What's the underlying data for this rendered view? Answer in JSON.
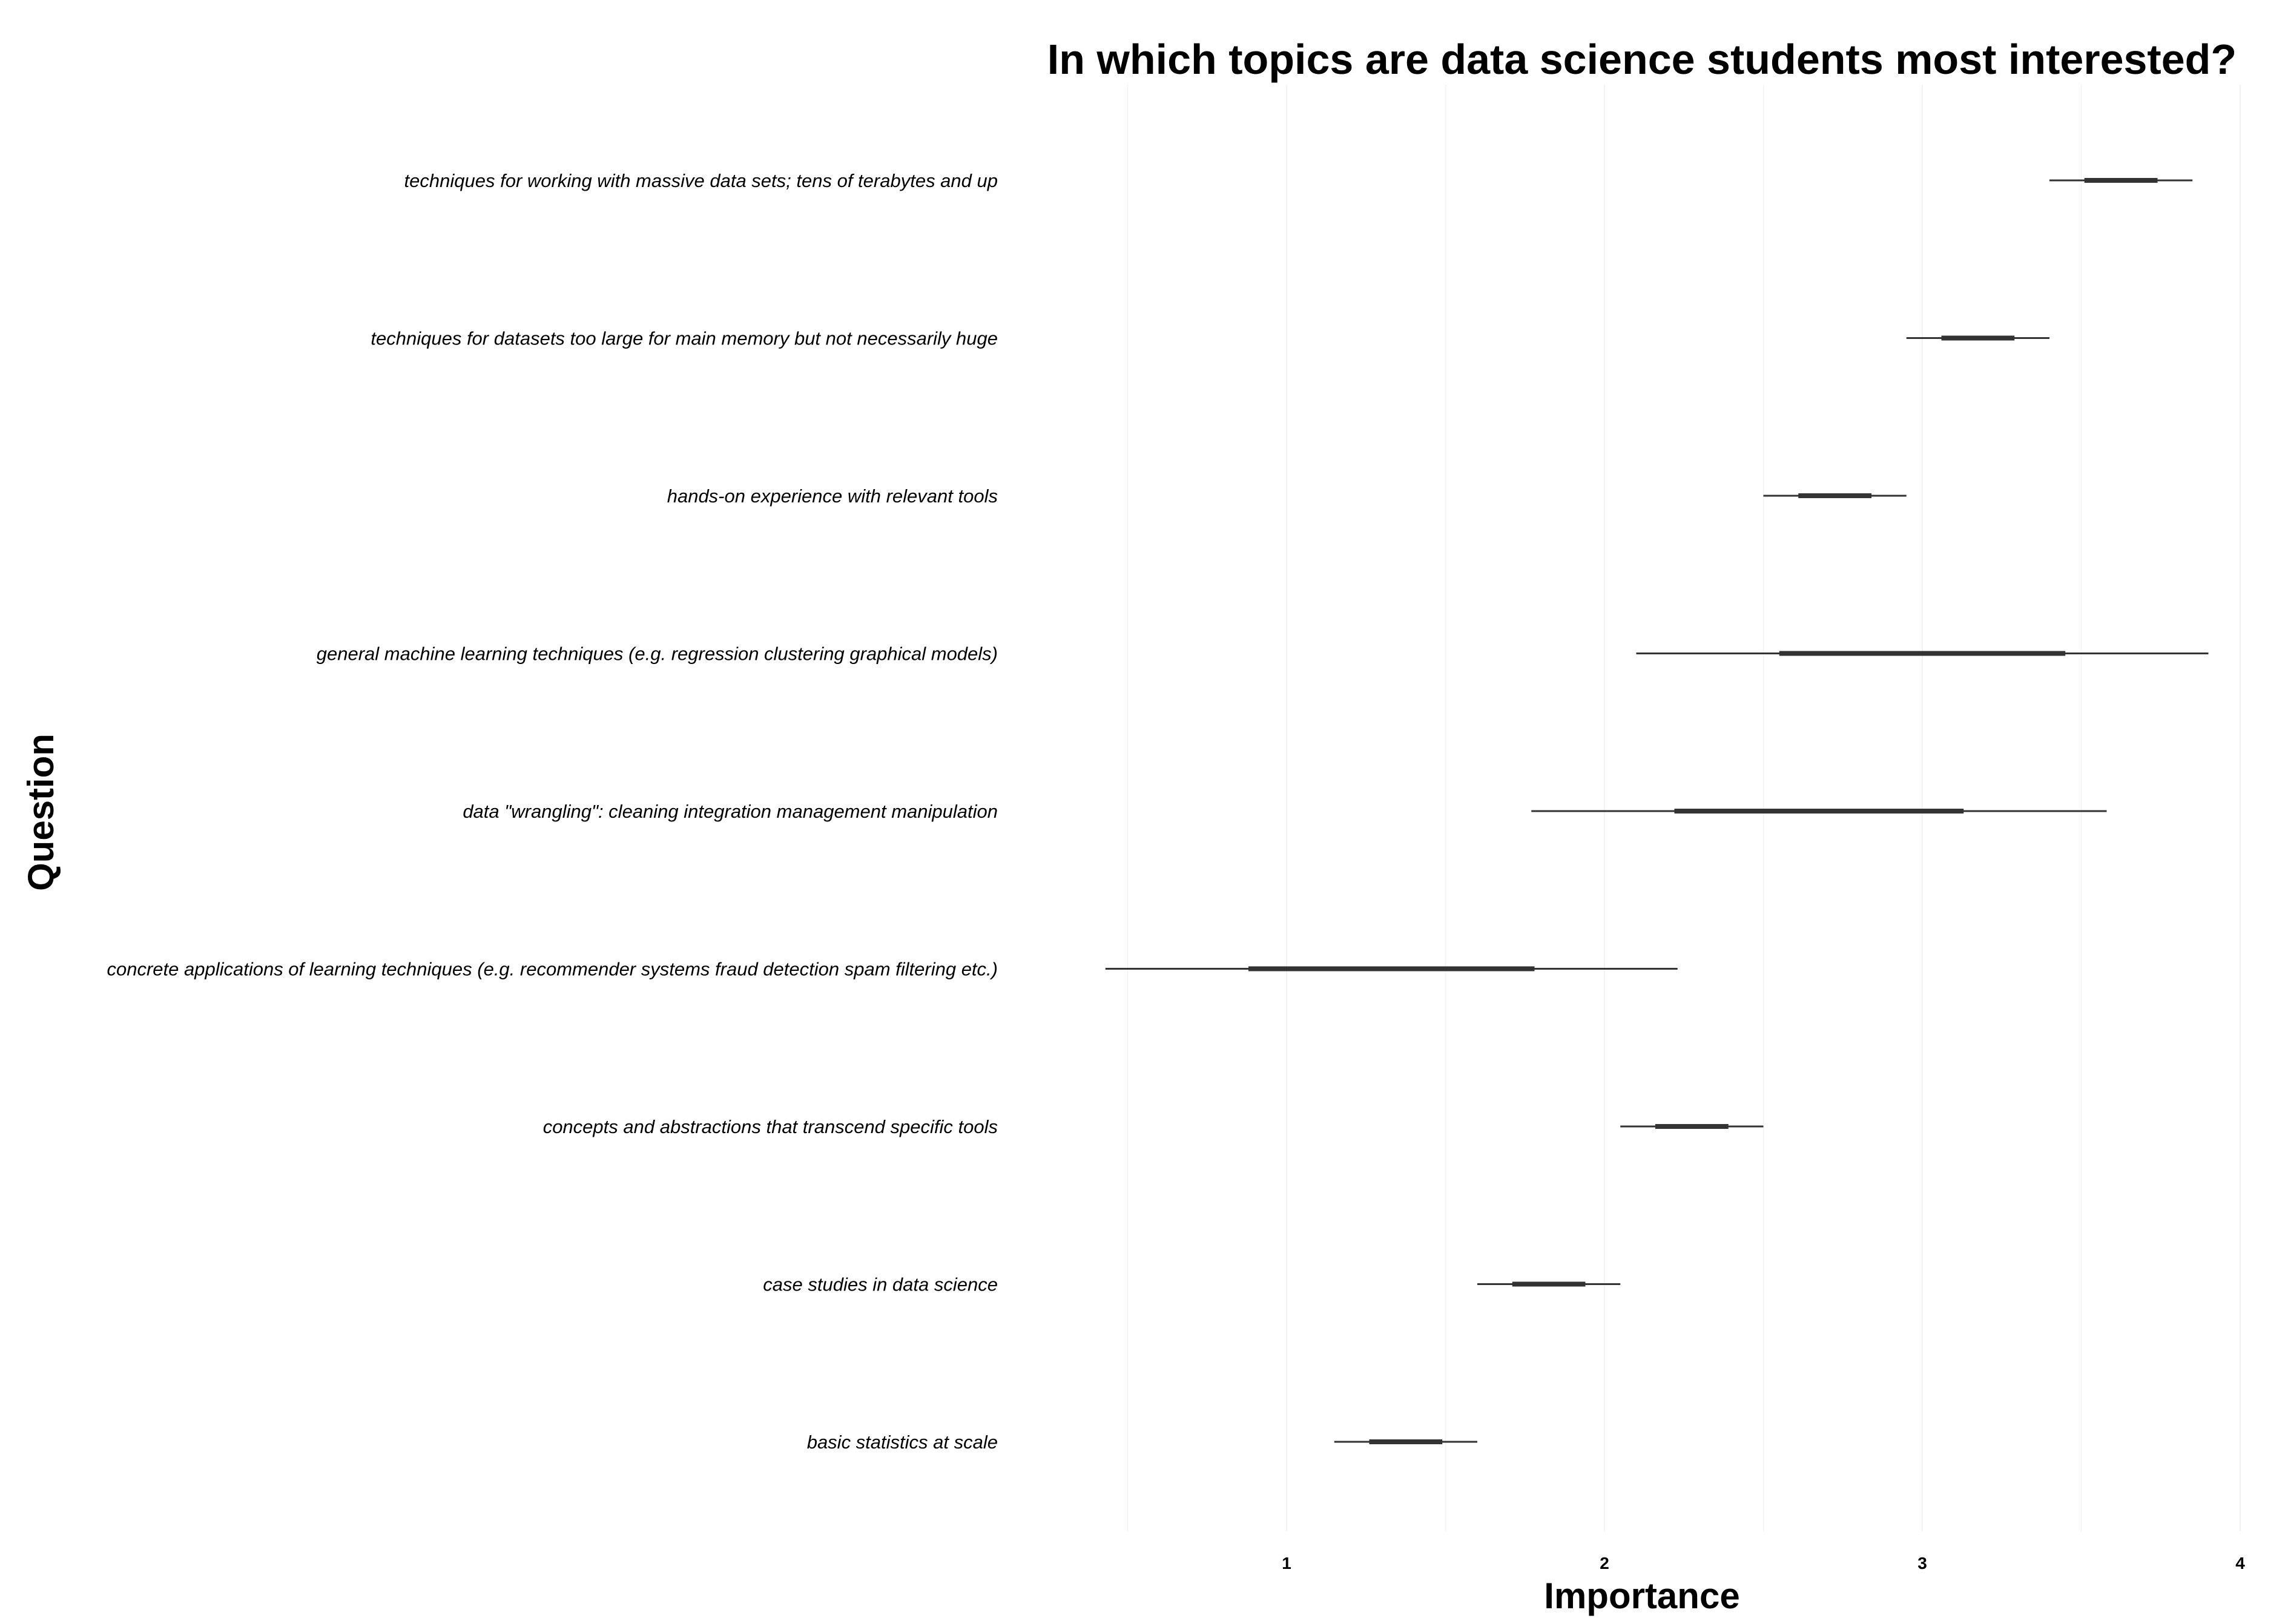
{
  "chart_data": {
    "type": "interval",
    "title": "In which topics are data science students most interested?",
    "xlabel": "Importance",
    "ylabel": "Question",
    "x_ticks": [
      "1",
      "2",
      "3",
      "4"
    ],
    "xlim": [
      0.4,
      4.0
    ],
    "grid": "vertical",
    "legend": "none",
    "colors": {
      "text": "#000000",
      "interval": "#333333",
      "grid": "#f2f2f2",
      "background": "#ffffff"
    },
    "rows": [
      {
        "question": "techniques for working with massive data sets; tens of terabytes and up",
        "low": 3.4,
        "q1": 3.51,
        "q3": 3.74,
        "high": 3.85
      },
      {
        "question": "techniques for datasets too large for main memory but not necessarily huge",
        "low": 2.95,
        "q1": 3.06,
        "q3": 3.29,
        "high": 3.4
      },
      {
        "question": "hands-on experience with relevant tools",
        "low": 2.5,
        "q1": 2.61,
        "q3": 2.84,
        "high": 2.95
      },
      {
        "question": "general machine learning techniques (e.g. regression clustering graphical models)",
        "low": 2.1,
        "q1": 2.55,
        "q3": 3.45,
        "high": 3.9
      },
      {
        "question": "data \"wrangling\": cleaning integration management manipulation",
        "low": 1.77,
        "q1": 2.22,
        "q3": 3.13,
        "high": 3.58
      },
      {
        "question": "concrete applications of learning techniques (e.g. recommender systems fraud detection spam filtering etc.)",
        "low": 0.43,
        "q1": 0.88,
        "q3": 1.78,
        "high": 2.23
      },
      {
        "question": "concepts and abstractions that transcend specific tools",
        "low": 2.05,
        "q1": 2.16,
        "q3": 2.39,
        "high": 2.5
      },
      {
        "question": "case studies in data science",
        "low": 1.6,
        "q1": 1.71,
        "q3": 1.94,
        "high": 2.05
      },
      {
        "question": "basic statistics at scale",
        "low": 1.15,
        "q1": 1.26,
        "q3": 1.49,
        "high": 1.6
      }
    ]
  }
}
